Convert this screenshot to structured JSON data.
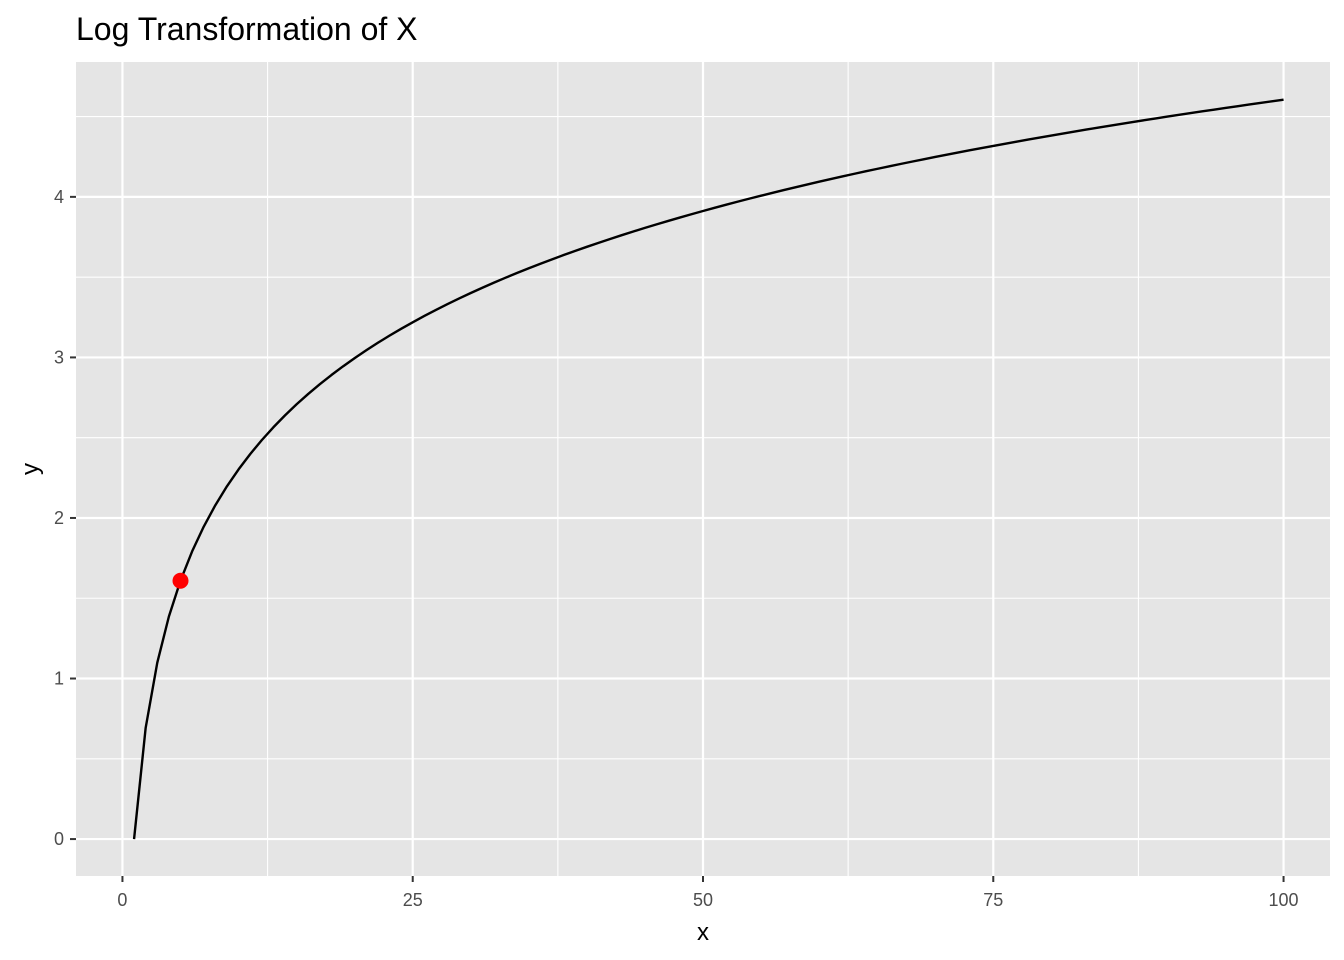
{
  "chart_data": {
    "type": "line",
    "title": "Log Transformation of X",
    "xlabel": "x",
    "ylabel": "y",
    "xlim": [
      -4,
      104
    ],
    "ylim": [
      -0.23,
      4.84
    ],
    "x_ticks": [
      0,
      25,
      50,
      75,
      100
    ],
    "y_ticks": [
      0,
      1,
      2,
      3,
      4
    ],
    "grid": true,
    "legend": "none",
    "series": [
      {
        "type": "line",
        "color": "#000000",
        "function": "ln(x)",
        "x_domain": [
          1,
          100
        ]
      },
      {
        "type": "point",
        "color": "#ff0000",
        "points": [
          {
            "x": 5,
            "y": 1.609
          }
        ]
      }
    ],
    "background": "#e5e5e5",
    "gridline_color": "#ffffff"
  }
}
